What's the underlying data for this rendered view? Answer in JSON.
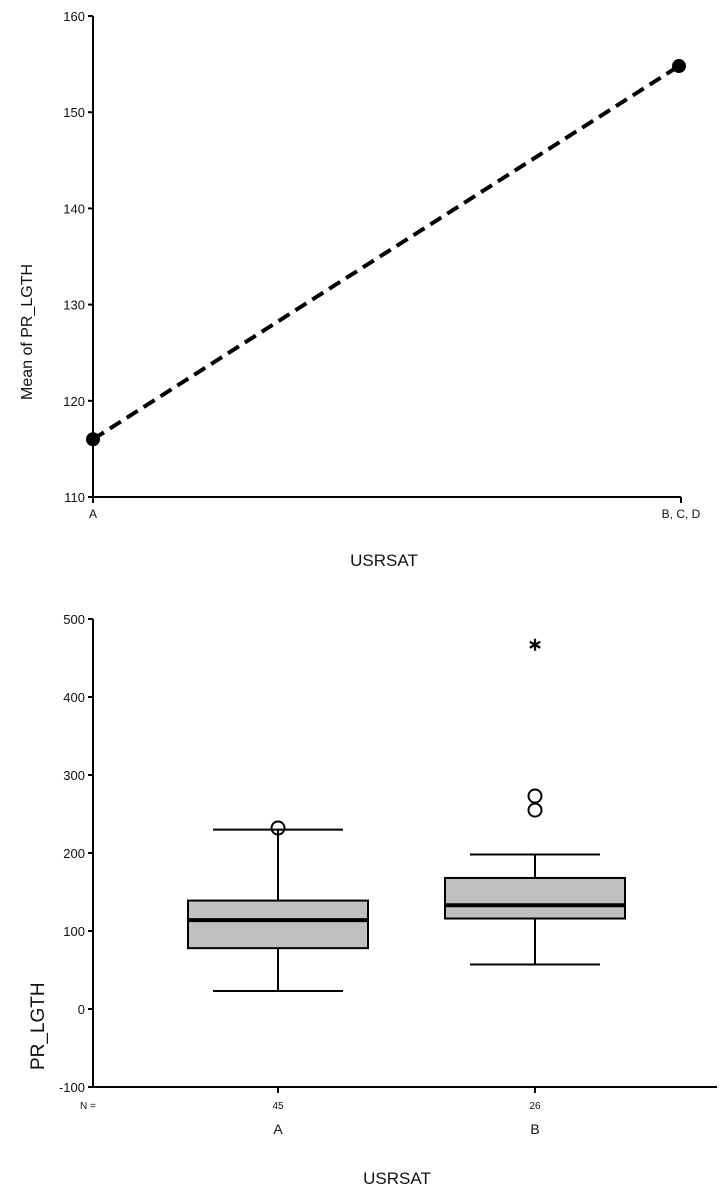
{
  "chart_data": [
    {
      "type": "line",
      "title": "",
      "xlabel": "USRSAT",
      "ylabel": "Mean of PR_LGTH",
      "categories": [
        "A",
        "B, C, D"
      ],
      "values": [
        116,
        154.8
      ],
      "ylim": [
        110,
        160
      ],
      "yticks": [
        "110",
        "120",
        "130",
        "140",
        "150",
        "160"
      ],
      "line_style": "dashed",
      "marker": "filled-circle",
      "grid": false,
      "legend": "none"
    },
    {
      "type": "box",
      "title": "",
      "xlabel": "USRSAT",
      "ylabel": "PR_LGTH",
      "ylim": [
        -100,
        500
      ],
      "yticks": [
        "-100",
        "0",
        "100",
        "200",
        "300",
        "400",
        "500"
      ],
      "n_label": "N =",
      "grid": false,
      "legend": "none",
      "box_color": "#c0c0c0",
      "groups": [
        {
          "category": "A",
          "n": "45",
          "min": 23,
          "q1": 78,
          "median": 114,
          "q3": 139,
          "max": 230,
          "outliers": [
            232
          ],
          "extremes": []
        },
        {
          "category": "B",
          "n": "26",
          "min": 57,
          "q1": 116,
          "median": 133,
          "q3": 168,
          "max": 198,
          "outliers": [
            255,
            273
          ],
          "extremes": [
            467
          ]
        }
      ]
    }
  ]
}
